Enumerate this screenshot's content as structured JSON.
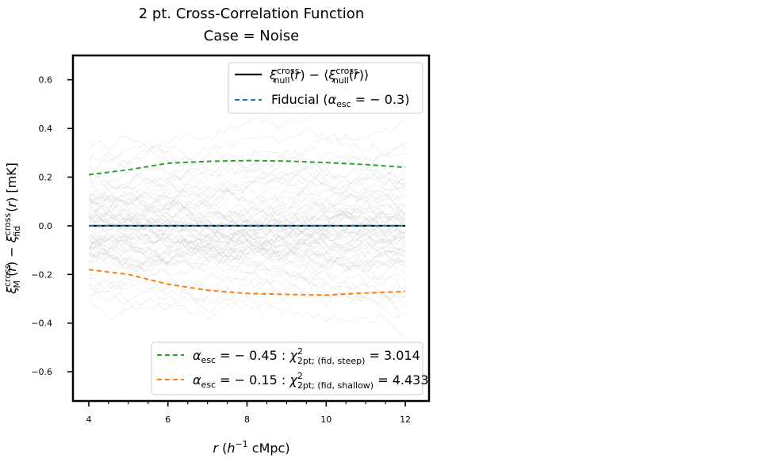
{
  "chart_data": {
    "type": "line",
    "title": "2 pt. Cross-Correlation Function",
    "subtitle": "Case = Noise",
    "xlabel": "r (h⁻¹ cMpc)",
    "ylabel": "ξ_M^cross (r) − ξ_fid^cross (r) [mK]",
    "xlim": [
      3.6,
      12.6
    ],
    "ylim": [
      -0.72,
      0.7
    ],
    "xticks": [
      4,
      6,
      8,
      10,
      12
    ],
    "xtick_labels": [
      "4",
      "6",
      "8",
      "10",
      "12"
    ],
    "yticks": [
      -0.6,
      -0.4,
      -0.2,
      0.0,
      0.2,
      0.4,
      0.6
    ],
    "ytick_labels": [
      "−0.6",
      "−0.4",
      "−0.2",
      "0.0",
      "0.2",
      "0.4",
      "0.6"
    ],
    "x": [
      4,
      5,
      6,
      7,
      8,
      9,
      10,
      11,
      12
    ],
    "series": [
      {
        "name": "ξ_null^cross(r) − ⟨ξ_null^cross(r)⟩",
        "color": "#000000",
        "dash": "solid",
        "values": [
          0,
          0,
          0,
          0,
          0,
          0,
          0,
          0,
          0
        ]
      },
      {
        "name": "Fiducial (α_esc = −0.3)",
        "color": "#1f77b4",
        "dash": "dashed",
        "values": [
          0,
          0,
          0,
          0,
          0,
          0,
          0,
          0,
          0
        ]
      },
      {
        "name": "α_esc = −0.45 : χ²_2pt; (fid, steep) = 3.014",
        "color": "#2ca02c",
        "dash": "dashed",
        "values": [
          0.21,
          0.23,
          0.257,
          0.265,
          0.268,
          0.266,
          0.26,
          0.252,
          0.24
        ]
      },
      {
        "name": "α_esc = −0.15 : χ²_2pt; (fid, shallow) = 4.433",
        "color": "#ff7f0e",
        "dash": "dashed",
        "values": [
          -0.18,
          -0.2,
          -0.24,
          -0.265,
          -0.278,
          -0.282,
          -0.285,
          -0.276,
          -0.27
        ]
      }
    ],
    "noise_band": {
      "color": "#bbbbbb",
      "realizations": 70
    }
  }
}
